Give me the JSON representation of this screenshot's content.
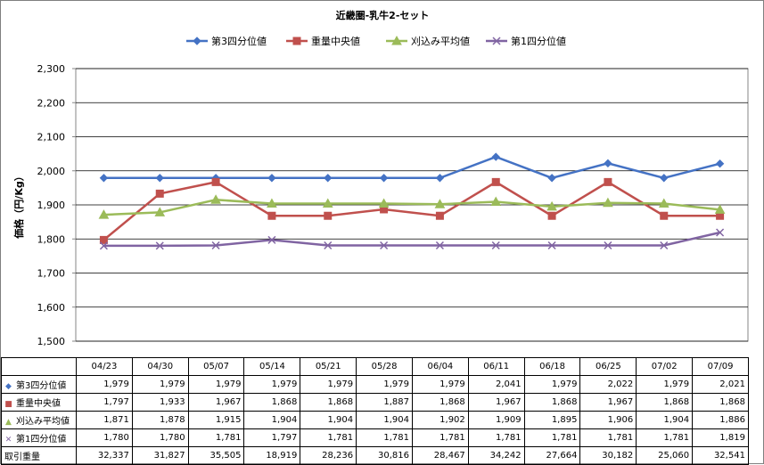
{
  "chart_data": {
    "type": "line",
    "title": "近畿圏-乳牛2-セット",
    "ylabel": "価格（円/Kg）",
    "ylim": [
      1500,
      2300
    ],
    "yticks": [
      "1,500",
      "1,600",
      "1,700",
      "1,800",
      "1,900",
      "2,000",
      "2,100",
      "2,200",
      "2,300"
    ],
    "ytick_values": [
      1500,
      1600,
      1700,
      1800,
      1900,
      2000,
      2100,
      2200,
      2300
    ],
    "grid": true,
    "legend_position": "top",
    "categories": [
      "04/23",
      "04/30",
      "05/07",
      "05/14",
      "05/21",
      "05/28",
      "06/04",
      "06/11",
      "06/18",
      "06/25",
      "07/02",
      "07/09"
    ],
    "series": [
      {
        "name": "第3四分位値",
        "color": "#4472c4",
        "marker": "diamond",
        "values": [
          1979,
          1979,
          1979,
          1979,
          1979,
          1979,
          1979,
          2041,
          1979,
          2022,
          1979,
          2021
        ],
        "display": [
          "1,979",
          "1,979",
          "1,979",
          "1,979",
          "1,979",
          "1,979",
          "1,979",
          "2,041",
          "1,979",
          "2,022",
          "1,979",
          "2,021"
        ]
      },
      {
        "name": "重量中央値",
        "color": "#c0504d",
        "marker": "square",
        "values": [
          1797,
          1933,
          1967,
          1868,
          1868,
          1887,
          1868,
          1967,
          1868,
          1967,
          1868,
          1868
        ],
        "display": [
          "1,797",
          "1,933",
          "1,967",
          "1,868",
          "1,868",
          "1,887",
          "1,868",
          "1,967",
          "1,868",
          "1,967",
          "1,868",
          "1,868"
        ]
      },
      {
        "name": "刈込み平均値",
        "color": "#9bbb59",
        "marker": "triangle",
        "values": [
          1871,
          1878,
          1915,
          1904,
          1904,
          1904,
          1902,
          1909,
          1895,
          1906,
          1904,
          1886
        ],
        "display": [
          "1,871",
          "1,878",
          "1,915",
          "1,904",
          "1,904",
          "1,904",
          "1,902",
          "1,909",
          "1,895",
          "1,906",
          "1,904",
          "1,886"
        ]
      },
      {
        "name": "第1四分位値",
        "color": "#8064a2",
        "marker": "x",
        "values": [
          1780,
          1780,
          1781,
          1797,
          1781,
          1781,
          1781,
          1781,
          1781,
          1781,
          1781,
          1819
        ],
        "display": [
          "1,780",
          "1,780",
          "1,781",
          "1,797",
          "1,781",
          "1,781",
          "1,781",
          "1,781",
          "1,781",
          "1,781",
          "1,781",
          "1,819"
        ]
      }
    ],
    "table_extra_row": {
      "name": "取引重量",
      "values": [
        32337,
        31827,
        35505,
        18919,
        28236,
        30816,
        28467,
        34242,
        27664,
        30182,
        25060,
        32541
      ],
      "display": [
        "32,337",
        "31,827",
        "35,505",
        "18,919",
        "28,236",
        "30,816",
        "28,467",
        "34,242",
        "27,664",
        "30,182",
        "25,060",
        "32,541"
      ]
    }
  }
}
